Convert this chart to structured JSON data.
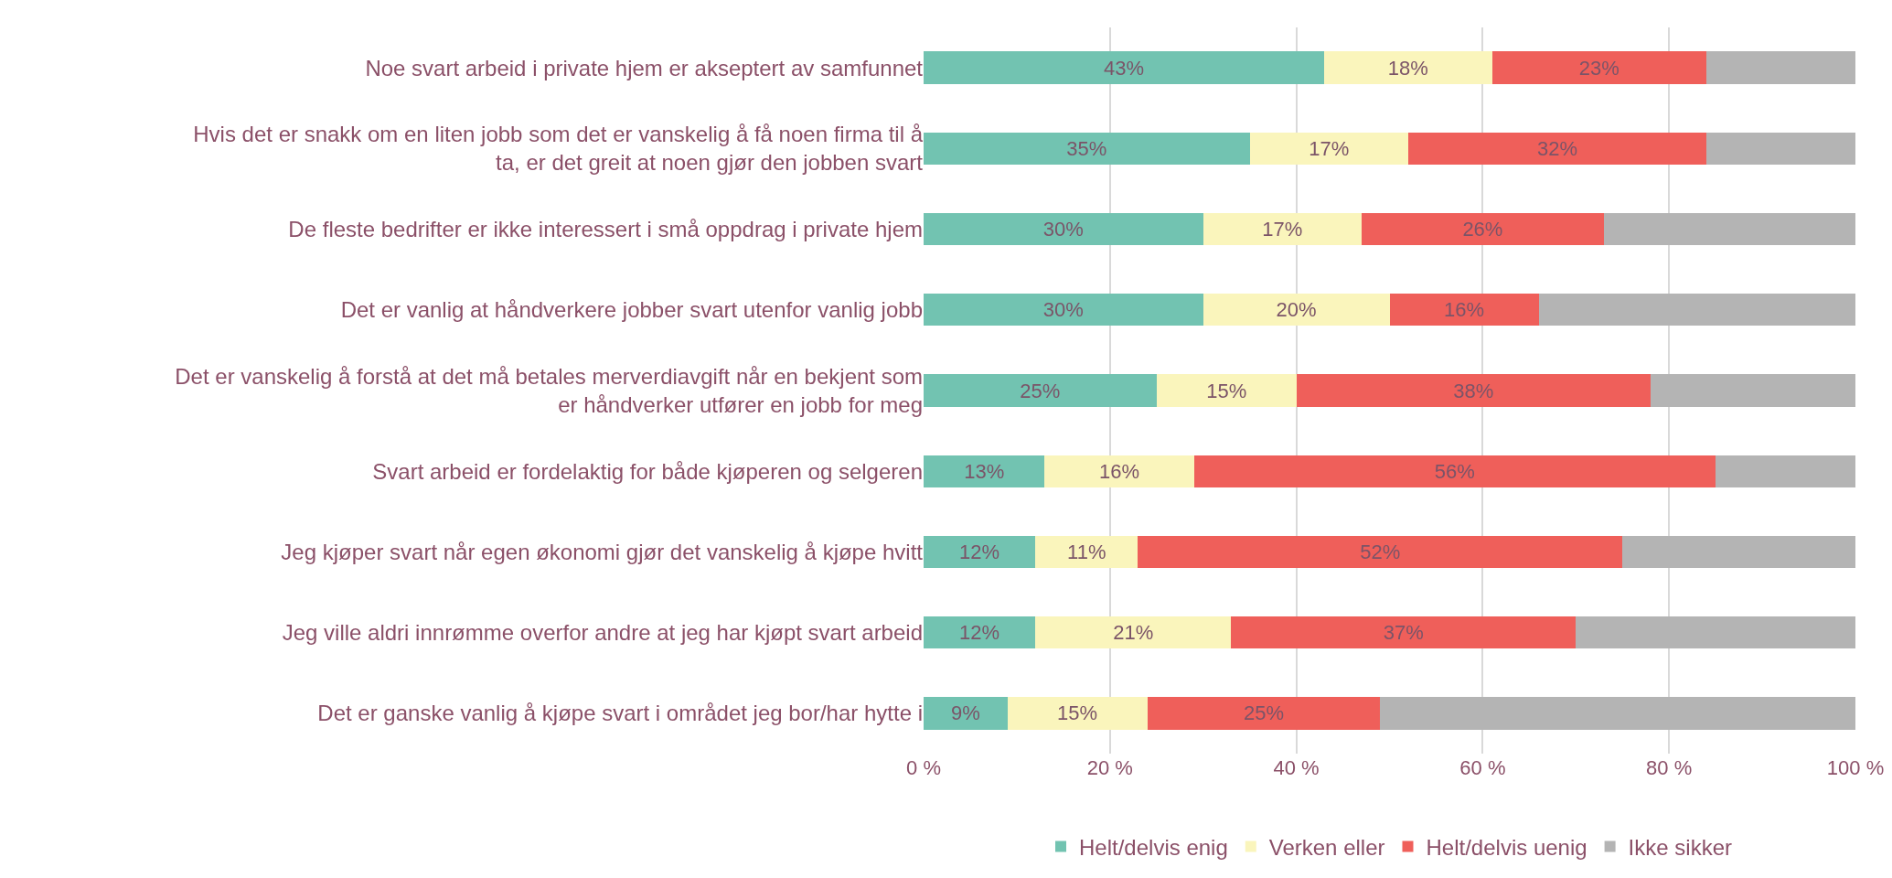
{
  "chart_data": {
    "type": "bar",
    "orientation": "horizontal",
    "stacked": true,
    "categories": [
      "Noe svart arbeid i private hjem er akseptert av samfunnet",
      "Hvis det er snakk om en liten jobb som det er vanskelig å få noen firma til å ta, er det greit at noen gjør den jobben svart",
      "De fleste bedrifter er ikke interessert i små oppdrag i private hjem",
      "Det er vanlig at håndverkere jobber svart utenfor vanlig jobb",
      "Det er vanskelig å forstå at det må betales merverdiavgift når en bekjent som er håndverker utfører en jobb for meg",
      "Svart arbeid er fordelaktig for både kjøperen og selgeren",
      "Jeg kjøper svart når egen økonomi gjør det vanskelig å kjøpe hvitt",
      "Jeg ville aldri innrømme overfor andre at jeg har kjøpt svart arbeid",
      "Det er ganske vanlig å kjøpe svart i området jeg bor/har hytte i"
    ],
    "series": [
      {
        "name": "Helt/delvis enig",
        "color": "#72c3b1",
        "values": [
          43,
          35,
          30,
          30,
          25,
          13,
          12,
          12,
          9
        ],
        "value_labels": [
          "43%",
          "35%",
          "30%",
          "30%",
          "25%",
          "13%",
          "12%",
          "12%",
          "9%"
        ]
      },
      {
        "name": "Verken eller",
        "color": "#faf5bc",
        "values": [
          18,
          17,
          17,
          20,
          15,
          16,
          11,
          21,
          15
        ],
        "value_labels": [
          "18%",
          "17%",
          "17%",
          "20%",
          "15%",
          "16%",
          "11%",
          "21%",
          "15%"
        ]
      },
      {
        "name": "Helt/delvis uenig",
        "color": "#ef5f5a",
        "values": [
          23,
          32,
          26,
          16,
          38,
          56,
          52,
          37,
          25
        ],
        "value_labels": [
          "23%",
          "32%",
          "26%",
          "16%",
          "38%",
          "56%",
          "52%",
          "37%",
          "25%"
        ]
      },
      {
        "name": "Ikke sikker",
        "color": "#b4b4b4",
        "values": [
          16,
          16,
          27,
          34,
          22,
          15,
          25,
          30,
          51
        ]
      }
    ],
    "xlim": [
      0,
      100
    ],
    "xticks": [
      {
        "value": 0,
        "label": "0 %"
      },
      {
        "value": 20,
        "label": "20 %"
      },
      {
        "value": 40,
        "label": "40 %"
      },
      {
        "value": 60,
        "label": "60 %"
      },
      {
        "value": 80,
        "label": "80 %"
      },
      {
        "value": 100,
        "label": "100 %"
      }
    ],
    "grid": "x",
    "legend": "bottom"
  }
}
